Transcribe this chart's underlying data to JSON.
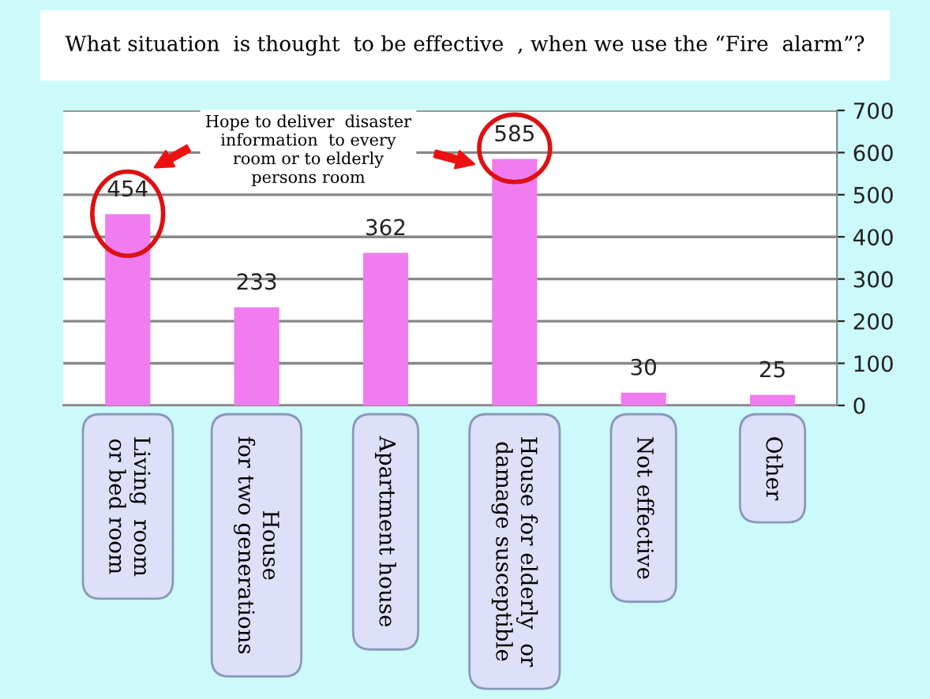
{
  "chart_data": {
    "type": "bar",
    "title": "What situation  is thought  to be effective  , when we use the “Fire  alarm”?",
    "categories": [
      "Living  room\nor bed room",
      "House\nfor two generations",
      "Apartment house",
      "House for elderly  or\ndamage susceptible",
      "Not effective",
      "Other"
    ],
    "values": [
      454,
      233,
      362,
      585,
      30,
      25
    ],
    "color": "#f07cf0",
    "ylim": [
      0,
      700
    ],
    "yticks": [
      0,
      100,
      200,
      300,
      400,
      500,
      600,
      700
    ],
    "grid": "y",
    "data_labels": true,
    "annotations": [
      "Hope to deliver  disaster\ninformation  to every\nroom or to elderly\npersons room"
    ]
  }
}
